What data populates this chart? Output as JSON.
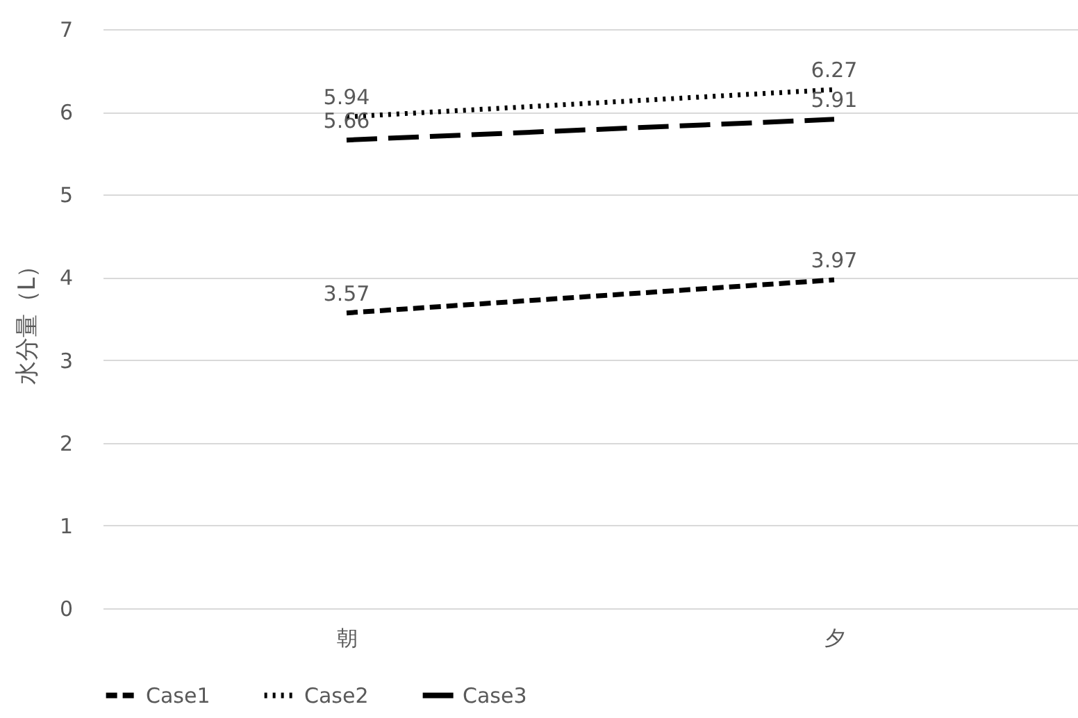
{
  "chart_data": {
    "type": "line",
    "ylabel": "水分量（L）",
    "categories": [
      "朝",
      "夕"
    ],
    "series": [
      {
        "name": "Case1",
        "color": "#000000",
        "line_style": "dashed",
        "values": [
          3.57,
          3.97
        ]
      },
      {
        "name": "Case2",
        "color": "#000000",
        "line_style": "dotted",
        "values": [
          5.94,
          6.27
        ]
      },
      {
        "name": "Case3",
        "color": "#000000",
        "line_style": "longdash",
        "values": [
          5.66,
          5.91
        ]
      }
    ],
    "ylim": [
      0,
      7
    ],
    "yticks": [
      0,
      1,
      2,
      3,
      4,
      5,
      6,
      7
    ],
    "grid": "y",
    "legend": "bottom",
    "data_labels": true
  }
}
